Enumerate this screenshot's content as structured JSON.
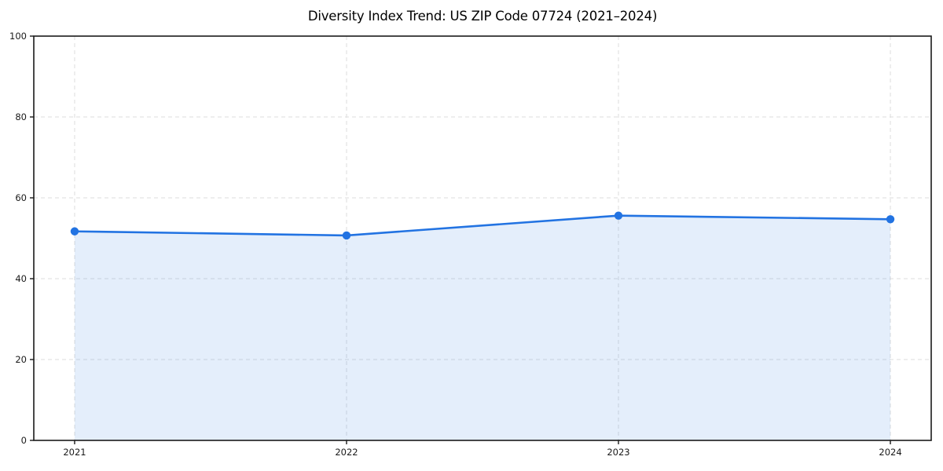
{
  "figure": {
    "background_color": "#ffffff"
  },
  "chart_data": {
    "type": "area",
    "title": "Diversity Index Trend: US ZIP Code 07724 (2021–2024)",
    "categories": [
      "2021",
      "2022",
      "2023",
      "2024"
    ],
    "series": [
      {
        "name": "Diversity Index",
        "values": [
          51.7,
          50.7,
          55.6,
          54.7
        ]
      }
    ],
    "xlabel": "",
    "ylabel": "",
    "ylim": [
      0,
      100
    ],
    "yticks": [
      0,
      20,
      40,
      60,
      80,
      100
    ],
    "grid": true,
    "grid_style": "dashed",
    "legend_position": "none",
    "marker": "circle",
    "colors": {
      "line": "#2273e2",
      "marker": "#2273e2",
      "fill": "rgba(34, 115, 226, 0.12)",
      "gridline": "#dddddd",
      "spine": "#1a1a1a",
      "tick_text": "#1a1a1a",
      "title_text": "#000000"
    }
  }
}
